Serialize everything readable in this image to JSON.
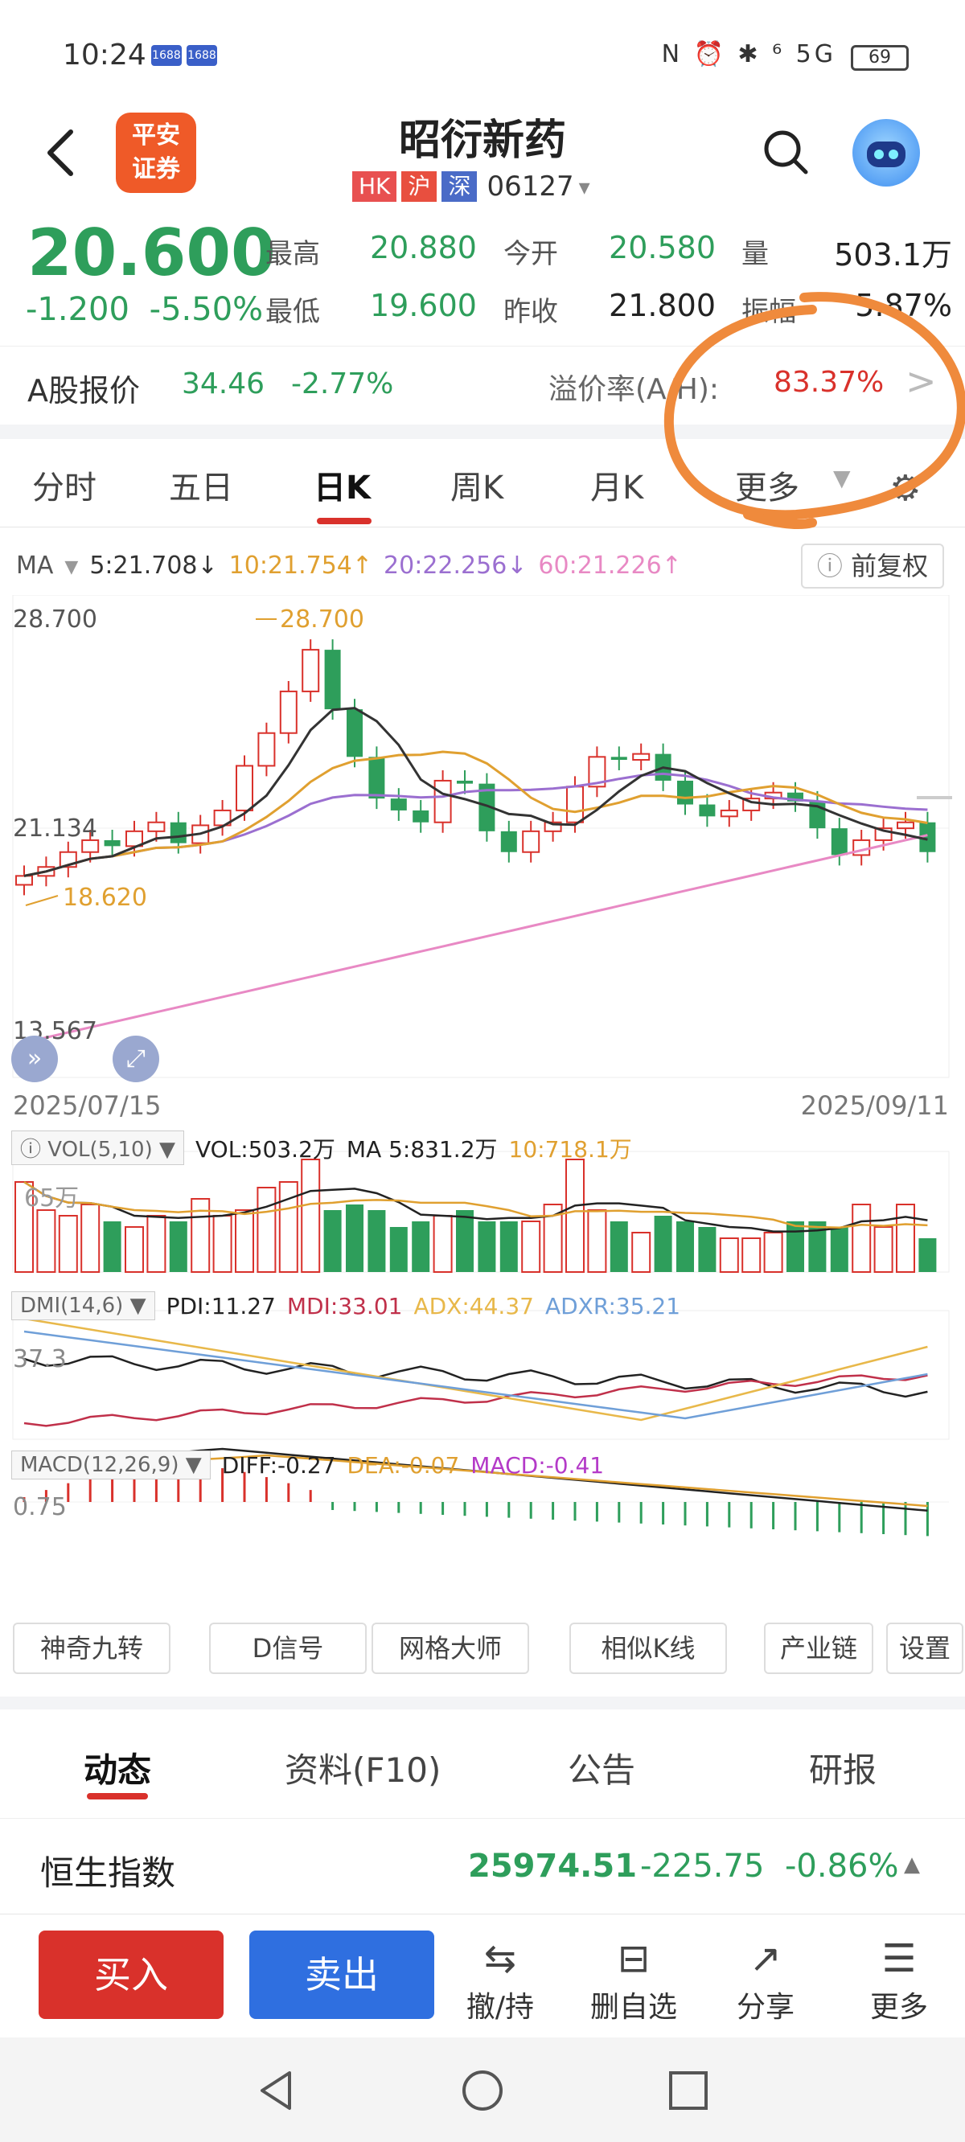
{
  "status_bar": {
    "time": "10:24",
    "badges": [
      "1688",
      "1688"
    ],
    "right_icons": "N ⏰ ✱ ⁶ 5G",
    "battery": "69"
  },
  "header": {
    "logo_text_line1": "平安",
    "logo_text_line2": "证券",
    "stock_name": "昭衍新药",
    "markets": [
      "HK",
      "沪",
      "深"
    ],
    "code": "06127",
    "code_arrow": "▾"
  },
  "quote": {
    "price": "20.600",
    "change": "-1.200",
    "change_pct": "-5.50%",
    "high_label": "最高",
    "high": "20.880",
    "open_label": "今开",
    "open": "20.580",
    "vol_label": "量",
    "vol": "503.1万",
    "low_label": "最低",
    "low": "19.600",
    "prev_close_label": "昨收",
    "prev_close": "21.800",
    "amplitude_label": "振幅",
    "amplitude": "5.87%"
  },
  "ah": {
    "label": "A股报价",
    "a_price": "34.46",
    "a_pct": "-2.77%",
    "premium_label": "溢价率(A/H):",
    "premium": "83.37%",
    "arrow": ">"
  },
  "period_tabs": [
    "分时",
    "五日",
    "日K",
    "周K",
    "月K",
    "更多"
  ],
  "ma": {
    "label": "MA",
    "ma5": "5:21.708↓",
    "ma10": "10:21.754↑",
    "ma20": "20:22.256↓",
    "ma60": "60:21.226↑",
    "fq": "前复权"
  },
  "kline": {
    "axis_top": "28.700",
    "axis_mid": "21.134",
    "axis_bottom": "13.567",
    "high_mark": "28.700",
    "low_mark": "18.620",
    "date_start": "2025/07/15",
    "date_end": "2025/09/11"
  },
  "vol_panel": {
    "box": "VOL(5,10)",
    "vol": "VOL:503.2万",
    "ma5": "MA 5:831.2万",
    "ma10": "10:718.1万",
    "axis": "65万"
  },
  "dmi_panel": {
    "box": "DMI(14,6)",
    "pdi": "PDI:11.27",
    "mdi": "MDI:33.01",
    "adx": "ADX:44.37",
    "adxr": "ADXR:35.21",
    "axis": "37.3"
  },
  "macd_panel": {
    "box": "MACD(12,26,9)",
    "diff": "DIFF:-0.27",
    "dea": "DEA:-0.07",
    "macd": "MACD:-0.41",
    "axis": "0.75"
  },
  "tools": [
    "神奇九转",
    "D信号",
    "网格大师",
    "相似K线",
    "产业链",
    "设置"
  ],
  "info_tabs": [
    "动态",
    "资料(F10)",
    "公告",
    "研报"
  ],
  "hsi": {
    "name": "恒生指数",
    "value": "25974.51",
    "change": "-225.75",
    "pct": "-0.86%",
    "arrow": "▲"
  },
  "actions": {
    "buy": "买入",
    "sell": "卖出",
    "items": [
      {
        "icon": "⇆",
        "label": "撤/持"
      },
      {
        "icon": "⊟",
        "label": "删自选"
      },
      {
        "icon": "↗",
        "label": "分享"
      },
      {
        "icon": "☰",
        "label": "更多"
      }
    ]
  },
  "colors": {
    "up": "#d9312b",
    "down": "#2e9e5b",
    "accent": "#2f6fe0",
    "annotation": "#ef8a3c"
  }
}
